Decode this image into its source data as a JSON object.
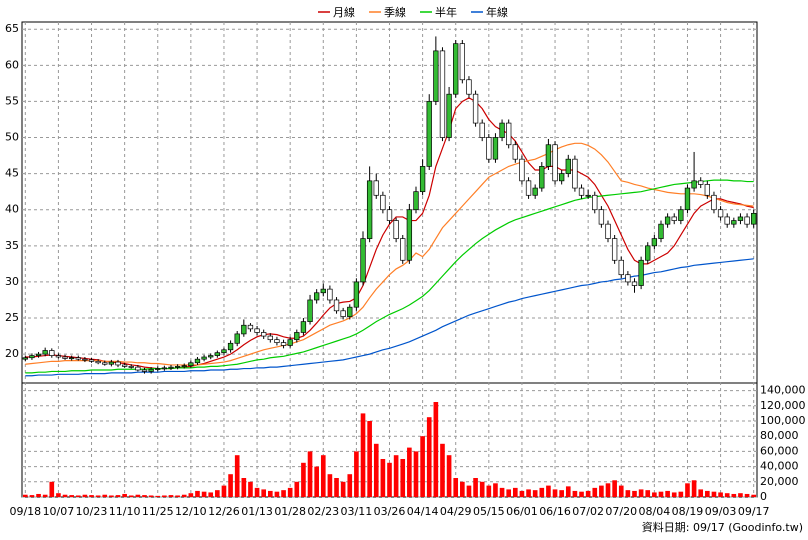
{
  "chart_data": {
    "type": "candlestick",
    "categories": [
      "09/18",
      null,
      null,
      null,
      null,
      "10/07",
      null,
      null,
      null,
      null,
      "10/23",
      null,
      null,
      null,
      null,
      "11/10",
      null,
      null,
      null,
      null,
      "11/25",
      null,
      null,
      null,
      null,
      "12/10",
      null,
      null,
      null,
      null,
      "12/26",
      null,
      null,
      null,
      null,
      "01/13",
      null,
      null,
      null,
      null,
      "01/28",
      null,
      null,
      null,
      null,
      "02/23",
      null,
      null,
      null,
      null,
      "03/11",
      null,
      null,
      null,
      null,
      "03/26",
      null,
      null,
      null,
      null,
      "04/14",
      null,
      null,
      null,
      null,
      "04/29",
      null,
      null,
      null,
      null,
      "05/15",
      null,
      null,
      null,
      null,
      "06/01",
      null,
      null,
      null,
      null,
      "06/16",
      null,
      null,
      null,
      null,
      "07/02",
      null,
      null,
      null,
      null,
      "07/20",
      null,
      null,
      null,
      null,
      "08/04",
      null,
      null,
      null,
      null,
      "08/19",
      null,
      null,
      null,
      null,
      "09/03",
      null,
      null,
      null,
      null,
      "09/17"
    ],
    "open": [
      19.3,
      19.5,
      19.8,
      20.0,
      20.5,
      19.8,
      19.6,
      19.4,
      19.5,
      19.3,
      19.2,
      19.0,
      18.8,
      18.6,
      18.9,
      18.5,
      18.3,
      18.2,
      17.8,
      17.6,
      17.9,
      18.0,
      18.1,
      18.2,
      18.3,
      18.4,
      18.8,
      19.3,
      19.6,
      19.8,
      20.2,
      20.6,
      21.5,
      22.8,
      24.0,
      23.5,
      23.0,
      22.5,
      22.0,
      21.6,
      21.2,
      22.0,
      23.0,
      24.5,
      27.5,
      28.5,
      29.0,
      27.5,
      26.0,
      25.2,
      26.5,
      30.0,
      36.0,
      44.0,
      42.0,
      40.0,
      38.5,
      36.0,
      33.0,
      40.0,
      42.5,
      46.0,
      55.0,
      62.0,
      50.0,
      56.0,
      63.0,
      58.0,
      56.0,
      52.0,
      50.0,
      47.0,
      50.0,
      52.0,
      49.0,
      47.0,
      44.0,
      42.0,
      43.0,
      46.0,
      49.0,
      44.0,
      45.0,
      47.0,
      43.0,
      42.0,
      42.0,
      40.0,
      38.0,
      36.0,
      33.0,
      31.0,
      30.0,
      29.5,
      33.0,
      35.0,
      36.0,
      38.0,
      39.0,
      38.5,
      40.0,
      43.0,
      44.0,
      43.5,
      42.0,
      40.0,
      39.0,
      38.0,
      38.5,
      39.0,
      38.0
    ],
    "high": [
      19.8,
      20.1,
      20.3,
      20.9,
      20.8,
      20.1,
      19.9,
      19.8,
      19.8,
      19.6,
      19.5,
      19.3,
      19.1,
      19.2,
      19.2,
      18.8,
      18.6,
      18.5,
      18.1,
      18.2,
      18.3,
      18.4,
      18.5,
      18.6,
      18.7,
      19.1,
      19.6,
      19.9,
      20.1,
      20.5,
      20.9,
      21.9,
      23.2,
      24.8,
      24.3,
      23.9,
      23.4,
      22.9,
      22.4,
      22.0,
      22.4,
      23.4,
      25.0,
      28.2,
      29.0,
      29.8,
      29.5,
      27.9,
      26.4,
      26.9,
      30.5,
      37.0,
      46.0,
      45.0,
      42.5,
      40.5,
      38.9,
      36.5,
      40.8,
      43.2,
      47.0,
      56.0,
      64.0,
      62.5,
      57.0,
      63.5,
      63.5,
      58.5,
      56.5,
      52.5,
      50.5,
      50.6,
      52.5,
      52.5,
      49.5,
      47.5,
      44.5,
      43.5,
      46.6,
      49.8,
      49.5,
      45.5,
      47.6,
      47.5,
      43.5,
      42.8,
      42.5,
      40.5,
      38.5,
      36.5,
      33.5,
      31.5,
      30.5,
      33.5,
      35.5,
      36.5,
      38.5,
      39.5,
      39.5,
      40.5,
      43.5,
      48.0,
      44.5,
      44.0,
      42.5,
      40.5,
      39.5,
      38.9,
      39.5,
      39.5,
      40.0
    ],
    "low": [
      19.0,
      19.2,
      19.5,
      19.7,
      19.5,
      19.4,
      19.2,
      19.1,
      19.1,
      18.9,
      18.8,
      18.6,
      18.4,
      18.3,
      18.2,
      18.1,
      18.0,
      17.6,
      17.3,
      17.3,
      17.6,
      17.7,
      17.8,
      17.9,
      18.0,
      18.1,
      18.5,
      19.0,
      19.3,
      19.5,
      19.8,
      20.2,
      21.1,
      22.4,
      23.1,
      22.6,
      22.1,
      21.6,
      21.2,
      20.8,
      20.9,
      21.6,
      22.6,
      24.1,
      27.0,
      28.0,
      27.0,
      25.6,
      24.8,
      24.8,
      26.0,
      29.5,
      35.5,
      41.5,
      39.5,
      38.0,
      35.5,
      32.5,
      32.5,
      39.5,
      42.0,
      45.5,
      54.5,
      49.5,
      49.5,
      55.5,
      57.5,
      55.5,
      51.5,
      49.5,
      46.5,
      46.5,
      49.5,
      48.5,
      46.5,
      43.5,
      41.5,
      41.5,
      42.5,
      45.5,
      43.5,
      43.5,
      44.5,
      42.5,
      41.5,
      41.5,
      39.5,
      37.5,
      35.5,
      32.5,
      30.5,
      29.5,
      28.5,
      29.0,
      32.5,
      34.5,
      35.5,
      37.5,
      38.0,
      38.0,
      39.5,
      42.5,
      43.0,
      41.5,
      39.5,
      38.5,
      37.5,
      37.5,
      38.0,
      37.5,
      37.5
    ],
    "close": [
      19.5,
      19.8,
      20.0,
      20.5,
      19.8,
      19.6,
      19.4,
      19.5,
      19.3,
      19.2,
      19.0,
      18.8,
      18.6,
      18.9,
      18.5,
      18.3,
      18.2,
      17.8,
      17.6,
      17.9,
      18.0,
      18.1,
      18.2,
      18.3,
      18.4,
      18.8,
      19.3,
      19.6,
      19.8,
      20.2,
      20.6,
      21.5,
      22.8,
      24.0,
      23.5,
      23.0,
      22.5,
      22.0,
      21.6,
      21.2,
      22.0,
      23.0,
      24.5,
      27.5,
      28.5,
      29.0,
      27.5,
      26.0,
      25.2,
      26.5,
      30.0,
      36.0,
      44.0,
      42.0,
      40.0,
      38.5,
      36.0,
      33.0,
      40.0,
      42.5,
      46.0,
      55.0,
      62.0,
      50.0,
      56.0,
      63.0,
      58.0,
      56.0,
      52.0,
      50.0,
      47.0,
      50.0,
      52.0,
      49.0,
      47.0,
      44.0,
      42.0,
      43.0,
      46.0,
      49.0,
      44.0,
      45.0,
      47.0,
      43.0,
      42.0,
      42.0,
      40.0,
      38.0,
      36.0,
      33.0,
      31.0,
      30.0,
      29.5,
      33.0,
      35.0,
      36.0,
      38.0,
      39.0,
      38.5,
      40.0,
      43.0,
      44.0,
      43.5,
      42.0,
      40.0,
      39.0,
      38.0,
      38.5,
      39.0,
      38.0,
      39.5
    ],
    "volume": [
      3000,
      2500,
      4000,
      3000,
      20000,
      5000,
      3000,
      2500,
      2000,
      3000,
      2500,
      2000,
      3000,
      2000,
      2500,
      4000,
      2000,
      3000,
      2500,
      2000,
      1500,
      2000,
      2500,
      2000,
      3000,
      5000,
      8000,
      7000,
      6000,
      9000,
      15000,
      30000,
      55000,
      25000,
      20000,
      12000,
      10000,
      8000,
      7000,
      9000,
      12000,
      20000,
      45000,
      60000,
      40000,
      55000,
      30000,
      25000,
      20000,
      30000,
      60000,
      110000,
      100000,
      70000,
      50000,
      45000,
      55000,
      50000,
      65000,
      60000,
      80000,
      105000,
      125000,
      70000,
      55000,
      25000,
      20000,
      15000,
      25000,
      20000,
      15000,
      18000,
      12000,
      10000,
      12000,
      8000,
      10000,
      9000,
      12000,
      15000,
      10000,
      9000,
      14000,
      8000,
      7000,
      8000,
      12000,
      15000,
      18000,
      22000,
      15000,
      9000,
      8000,
      10000,
      9000,
      6000,
      7000,
      8000,
      6000,
      7000,
      18000,
      22000,
      10000,
      8000,
      7000,
      6000,
      5000,
      4000,
      5000,
      4000,
      3000
    ],
    "up_color": "#33bb33",
    "down_color": "#ffffff",
    "volume_color": "#ff0000",
    "series": [
      {
        "name": "月線",
        "color": "#cc0000",
        "values": [
          19.6,
          19.6,
          19.7,
          19.8,
          19.9,
          19.8,
          19.7,
          19.6,
          19.5,
          19.4,
          19.3,
          19.2,
          19.0,
          18.9,
          18.8,
          18.7,
          18.5,
          18.4,
          18.2,
          18.1,
          18.0,
          18.0,
          18.0,
          18.1,
          18.2,
          18.3,
          18.5,
          18.7,
          19.0,
          19.3,
          19.6,
          20.0,
          20.6,
          21.3,
          21.9,
          22.4,
          22.7,
          22.8,
          22.7,
          22.4,
          22.2,
          22.2,
          22.5,
          23.3,
          24.3,
          25.4,
          26.4,
          27.0,
          27.2,
          27.3,
          27.8,
          29.5,
          32.0,
          34.5,
          36.5,
          38.0,
          39.0,
          39.0,
          38.5,
          38.5,
          39.5,
          42.0,
          46.0,
          48.5,
          51.0,
          54.0,
          55.0,
          55.5,
          55.0,
          54.0,
          52.5,
          51.5,
          51.0,
          50.5,
          49.5,
          48.0,
          46.5,
          45.5,
          45.5,
          46.0,
          46.0,
          45.5,
          45.5,
          45.5,
          45.0,
          44.5,
          43.5,
          42.0,
          40.5,
          38.5,
          36.5,
          34.5,
          33.0,
          32.5,
          32.5,
          33.0,
          33.5,
          34.0,
          35.0,
          36.5,
          38.0,
          39.5,
          40.5,
          41.0,
          41.5,
          41.5,
          41.2,
          41.0,
          40.8,
          40.5,
          40.3
        ]
      },
      {
        "name": "季線",
        "color": "#ff7f27",
        "values": [
          18.6,
          18.7,
          18.8,
          18.9,
          19.0,
          19.0,
          19.1,
          19.1,
          19.1,
          19.1,
          19.1,
          19.1,
          19.0,
          19.0,
          19.0,
          18.9,
          18.9,
          18.8,
          18.8,
          18.7,
          18.7,
          18.6,
          18.5,
          18.5,
          18.5,
          18.5,
          18.5,
          18.6,
          18.7,
          18.8,
          18.9,
          19.1,
          19.4,
          19.7,
          20.0,
          20.3,
          20.6,
          20.8,
          21.0,
          21.2,
          21.4,
          21.7,
          22.0,
          22.5,
          23.0,
          23.5,
          24.0,
          24.3,
          24.6,
          25.0,
          25.6,
          26.5,
          27.8,
          29.0,
          30.0,
          31.0,
          31.8,
          32.3,
          33.0,
          34.0,
          33.5,
          34.5,
          36.0,
          37.5,
          38.5,
          39.5,
          40.5,
          41.5,
          42.5,
          43.5,
          44.5,
          45.0,
          45.5,
          46.0,
          46.3,
          46.6,
          46.8,
          47.0,
          47.4,
          47.8,
          48.3,
          48.7,
          49.0,
          49.2,
          49.2,
          48.9,
          48.4,
          47.6,
          46.6,
          45.3,
          44.0,
          43.8,
          43.5,
          43.3,
          43.0,
          42.8,
          42.6,
          42.4,
          42.3,
          42.2,
          42.2,
          42.2,
          42.1,
          41.9,
          41.6,
          41.3,
          41.0,
          40.8,
          40.7,
          40.6,
          40.5
        ]
      },
      {
        "name": "半年",
        "color": "#00cc00",
        "values": [
          17.4,
          17.4,
          17.5,
          17.5,
          17.6,
          17.6,
          17.6,
          17.7,
          17.7,
          17.7,
          17.8,
          17.8,
          17.8,
          17.8,
          17.9,
          17.9,
          17.9,
          17.9,
          17.9,
          18.0,
          18.0,
          18.0,
          18.0,
          18.1,
          18.1,
          18.1,
          18.2,
          18.2,
          18.3,
          18.3,
          18.4,
          18.5,
          18.6,
          18.8,
          19.0,
          19.2,
          19.3,
          19.5,
          19.6,
          19.7,
          19.9,
          20.1,
          20.3,
          20.6,
          20.9,
          21.2,
          21.5,
          21.8,
          22.1,
          22.4,
          22.8,
          23.3,
          23.9,
          24.5,
          25.0,
          25.5,
          25.9,
          26.3,
          26.8,
          27.4,
          28.0,
          28.8,
          29.8,
          30.8,
          31.8,
          32.8,
          33.7,
          34.5,
          35.3,
          36.0,
          36.6,
          37.2,
          37.7,
          38.2,
          38.6,
          38.9,
          39.2,
          39.5,
          39.8,
          40.1,
          40.4,
          40.7,
          41.0,
          41.3,
          41.5,
          41.7,
          41.8,
          41.9,
          42.0,
          42.1,
          42.2,
          42.3,
          42.4,
          42.5,
          42.7,
          42.9,
          43.1,
          43.3,
          43.5,
          43.6,
          43.7,
          43.8,
          43.9,
          44.0,
          44.1,
          44.1,
          44.1,
          44.0,
          44.0,
          43.9,
          43.9
        ]
      },
      {
        "name": "年線",
        "color": "#0055cc",
        "values": [
          17.0,
          17.0,
          17.1,
          17.1,
          17.1,
          17.2,
          17.2,
          17.2,
          17.2,
          17.3,
          17.3,
          17.3,
          17.3,
          17.4,
          17.4,
          17.4,
          17.4,
          17.5,
          17.5,
          17.5,
          17.5,
          17.6,
          17.6,
          17.6,
          17.6,
          17.7,
          17.7,
          17.7,
          17.8,
          17.8,
          17.8,
          17.9,
          17.9,
          18.0,
          18.0,
          18.1,
          18.1,
          18.2,
          18.2,
          18.3,
          18.4,
          18.5,
          18.6,
          18.7,
          18.8,
          18.9,
          19.0,
          19.1,
          19.2,
          19.4,
          19.6,
          19.8,
          20.0,
          20.3,
          20.6,
          20.8,
          21.1,
          21.4,
          21.7,
          22.1,
          22.5,
          22.9,
          23.3,
          23.8,
          24.2,
          24.6,
          25.0,
          25.4,
          25.7,
          26.0,
          26.3,
          26.6,
          26.9,
          27.2,
          27.4,
          27.7,
          27.9,
          28.1,
          28.3,
          28.5,
          28.7,
          28.9,
          29.1,
          29.3,
          29.5,
          29.6,
          29.8,
          30.0,
          30.1,
          30.3,
          30.4,
          30.6,
          30.8,
          30.9,
          31.1,
          31.3,
          31.4,
          31.6,
          31.8,
          32.0,
          32.1,
          32.3,
          32.4,
          32.5,
          32.6,
          32.7,
          32.8,
          32.9,
          33.0,
          33.1,
          33.2
        ]
      }
    ],
    "ylim": [
      16,
      66
    ],
    "yticks": [
      20,
      25,
      30,
      35,
      40,
      45,
      50,
      55,
      60,
      65
    ],
    "y2lim": [
      0,
      150000
    ],
    "y2ticks": [
      0,
      {
        "value": 20000,
        "label": "20,000"
      },
      {
        "value": 40000,
        "label": "40,000"
      },
      {
        "value": 60000,
        "label": "60,000"
      },
      {
        "value": 80000,
        "label": "80,000"
      },
      {
        "value": 100000,
        "label": "100,000"
      },
      {
        "value": 120000,
        "label": "120,000"
      },
      {
        "value": 140000,
        "label": "140,000"
      }
    ],
    "grid": true,
    "source": "資料日期: 09/17  (Goodinfo.tw)"
  }
}
